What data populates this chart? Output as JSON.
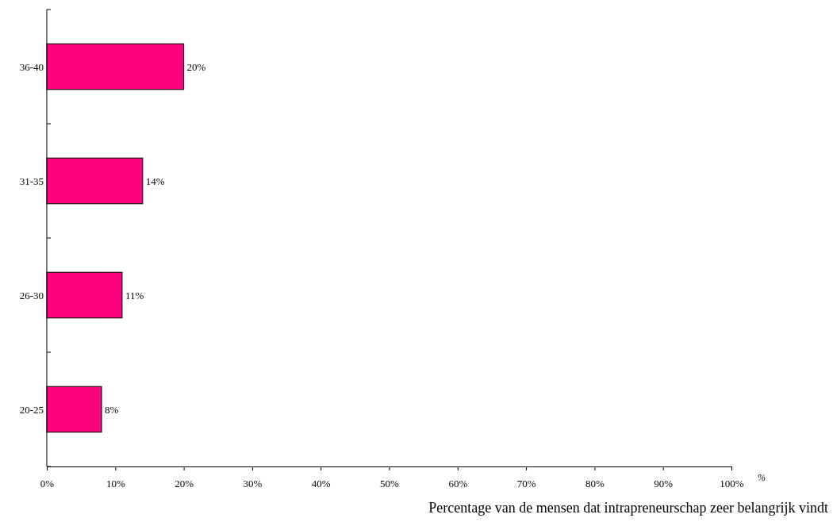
{
  "chart_data": {
    "type": "bar",
    "orientation": "horizontal",
    "categories": [
      "36-40",
      "31-35",
      "26-30",
      "20-25"
    ],
    "values": [
      20,
      14,
      11,
      8
    ],
    "color": "#ff0080",
    "value_labels": [
      "20%",
      "14%",
      "11%",
      "8%"
    ],
    "xlim": [
      0,
      100
    ],
    "xticks": [
      {
        "value": 0,
        "label": "0%"
      },
      {
        "value": 10,
        "label": "10%"
      },
      {
        "value": 20,
        "label": "20%"
      },
      {
        "value": 30,
        "label": "30%"
      },
      {
        "value": 40,
        "label": "40%"
      },
      {
        "value": 50,
        "label": "50%"
      },
      {
        "value": 60,
        "label": "60%"
      },
      {
        "value": 70,
        "label": "70%"
      },
      {
        "value": 80,
        "label": "80%"
      },
      {
        "value": 90,
        "label": "90%"
      },
      {
        "value": 100,
        "label": "100%"
      }
    ],
    "xlabel": "Percentage van de mensen dat intrapreneurschap zeer belangrijk vindt",
    "annotations": [
      "%"
    ],
    "grid": false
  }
}
